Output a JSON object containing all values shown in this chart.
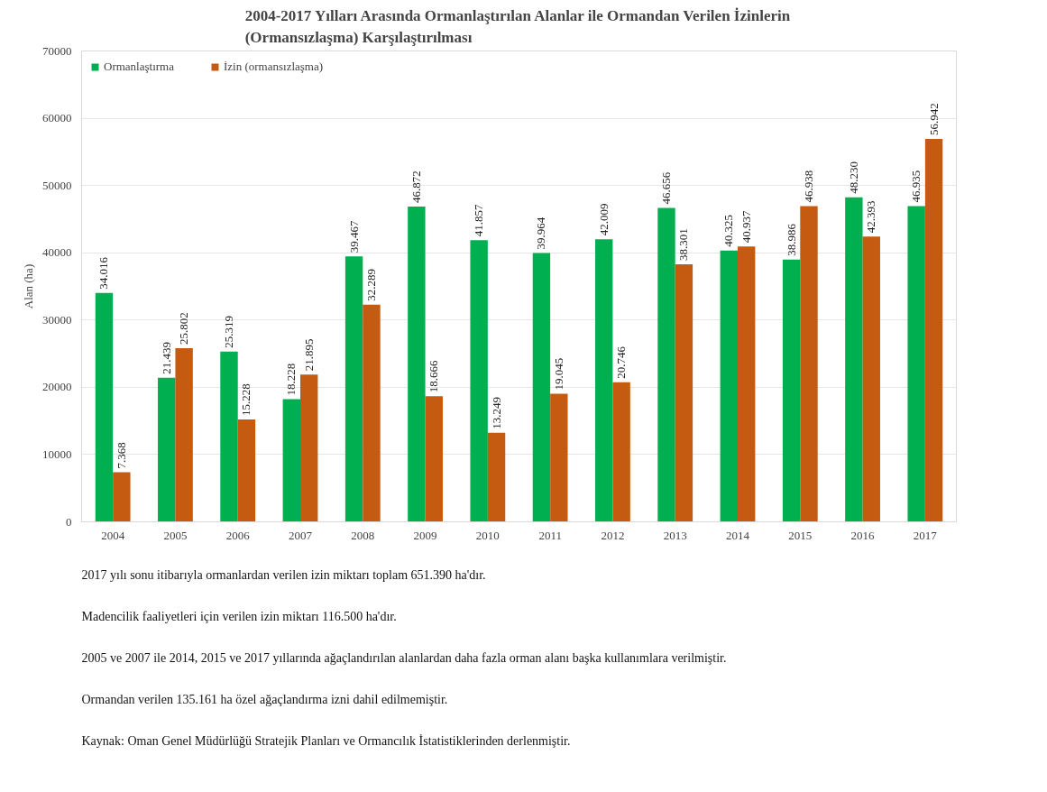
{
  "chart_data": {
    "type": "bar",
    "title": "2004-2017 Yılları Arasında Ormanlaştırılan Alanlar ile Ormandan Verilen İzinlerin\n(Ormansızlaşma) Karşılaştırılması",
    "ylabel": "Alan (ha)",
    "categories": [
      "2004",
      "2005",
      "2006",
      "2007",
      "2008",
      "2009",
      "2010",
      "2011",
      "2012",
      "2013",
      "2014",
      "2015",
      "2016",
      "2017"
    ],
    "series": [
      {
        "name": "Ormanlaştırma",
        "color": "#00b050",
        "values": [
          34016,
          21439,
          25319,
          18228,
          39467,
          46872,
          41857,
          39964,
          42009,
          46656,
          40325,
          38986,
          48230,
          46935
        ],
        "value_labels": [
          "34.016",
          "21.439",
          "25.319",
          "18.228",
          "39.467",
          "46.872",
          "41.857",
          "39.964",
          "42.009",
          "46.656",
          "40.325",
          "38.986",
          "48.230",
          "46.935"
        ]
      },
      {
        "name": "İzin (ormansızlaşma)",
        "color": "#c55a11",
        "values": [
          7368,
          25802,
          15228,
          21895,
          32289,
          18666,
          13249,
          19045,
          20746,
          38301,
          40937,
          46938,
          42393,
          56942
        ],
        "value_labels": [
          "7.368",
          "25.802",
          "15.228",
          "21.895",
          "32.289",
          "18.666",
          "13.249",
          "19.045",
          "20.746",
          "38.301",
          "40.937",
          "46.938",
          "42.393",
          "56.942"
        ]
      }
    ],
    "ylim": [
      0,
      70000
    ],
    "yticks": [
      0,
      10000,
      20000,
      30000,
      40000,
      50000,
      60000,
      70000
    ],
    "grid": "y",
    "legend": "top left",
    "annotations": [
      "2017 yılı sonu itibarıyla ormanlardan verilen izin miktarı toplam 651.390 ha'dır.",
      "Madencilik faaliyetleri için verilen izin miktarı 116.500 ha'dır.",
      "2005 ve 2007 ile 2014, 2015 ve 2017 yıllarında ağaçlandırılan alanlardan daha fazla orman alanı başka kullanımlara verilmiştir.",
      "Ormandan verilen 135.161 ha özel ağaçlandırma izni dahil edilmemiştir.",
      "Kaynak: Oman Genel Müdürlüğü Stratejik Planları ve Ormancılık İstatistiklerinden derlenmiştir."
    ]
  }
}
